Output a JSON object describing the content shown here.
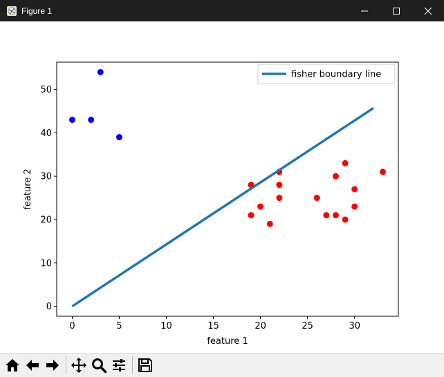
{
  "window": {
    "title": "Figure 1",
    "icons": {
      "app": "matplotlib-figure-icon",
      "minimize": "minimize-icon",
      "maximize": "maximize-icon",
      "close": "close-icon"
    }
  },
  "toolbar": {
    "buttons": [
      {
        "name": "home-button",
        "icon": "home-icon"
      },
      {
        "name": "back-button",
        "icon": "arrow-left-icon"
      },
      {
        "name": "forward-button",
        "icon": "arrow-right-icon"
      },
      {
        "name": "pan-button",
        "icon": "move-icon"
      },
      {
        "name": "zoom-button",
        "icon": "magnifier-icon"
      },
      {
        "name": "subplots-button",
        "icon": "sliders-icon"
      },
      {
        "name": "save-button",
        "icon": "floppy-disk-icon"
      }
    ]
  },
  "chart_data": {
    "type": "scatter",
    "xlabel": "feature 1",
    "ylabel": "feature 2",
    "xlim": [
      -1.65,
      34.65
    ],
    "ylim": [
      -2.3,
      56.3
    ],
    "xticks": [
      0,
      5,
      10,
      15,
      20,
      25,
      30
    ],
    "yticks": [
      0,
      10,
      20,
      30,
      40,
      50
    ],
    "grid": false,
    "legend": {
      "placement": "top-right",
      "entries": [
        "fisher boundary line"
      ]
    },
    "series": [
      {
        "color": "#0000ff",
        "points": [
          [
            0,
            43
          ],
          [
            2,
            43
          ],
          [
            3,
            54
          ],
          [
            5,
            39
          ]
        ]
      },
      {
        "color": "#ff0000",
        "points": [
          [
            19,
            28
          ],
          [
            19,
            21
          ],
          [
            20,
            23
          ],
          [
            21,
            19
          ],
          [
            22,
            31
          ],
          [
            22,
            28
          ],
          [
            22,
            25
          ],
          [
            26,
            25
          ],
          [
            27,
            21
          ],
          [
            28,
            30
          ],
          [
            28,
            21
          ],
          [
            29,
            33
          ],
          [
            29,
            20
          ],
          [
            30,
            27
          ],
          [
            30,
            23
          ],
          [
            33,
            31
          ]
        ]
      },
      {
        "name": "fisher boundary line",
        "type": "line",
        "color": "#1f77b4",
        "points": [
          [
            0,
            0
          ],
          [
            32,
            45.7
          ]
        ]
      }
    ]
  }
}
